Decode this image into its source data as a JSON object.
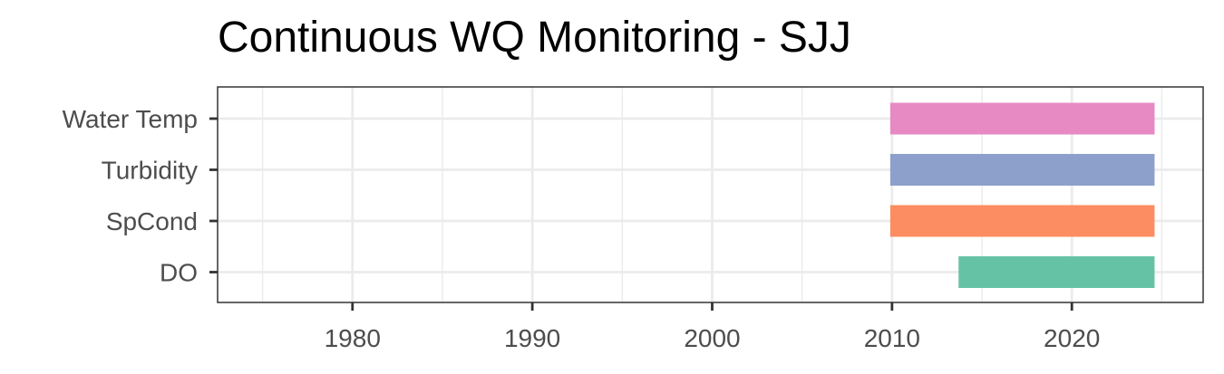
{
  "title": "Continuous WQ Monitoring - SJJ",
  "chart_data": {
    "type": "bar",
    "orientation": "horizontal-range",
    "title": "Continuous WQ Monitoring - SJJ",
    "xlabel": "",
    "ylabel": "",
    "xlim": [
      1972.5,
      2027.3
    ],
    "x_ticks": [
      1980,
      1990,
      2000,
      2010,
      2020
    ],
    "x_tick_labels": [
      "1980",
      "1990",
      "2000",
      "2010",
      "2020"
    ],
    "categories": [
      "Water Temp",
      "Turbidity",
      "SpCond",
      "DO"
    ],
    "series": [
      {
        "category": "Water Temp",
        "start": 2009.9,
        "end": 2024.6,
        "color": "#e78ac3"
      },
      {
        "category": "Turbidity",
        "start": 2009.9,
        "end": 2024.6,
        "color": "#8da0cb"
      },
      {
        "category": "SpCond",
        "start": 2009.9,
        "end": 2024.6,
        "color": "#fc8d62"
      },
      {
        "category": "DO",
        "start": 2013.7,
        "end": 2024.6,
        "color": "#66c2a5"
      }
    ],
    "grid": true,
    "legend": "none"
  }
}
